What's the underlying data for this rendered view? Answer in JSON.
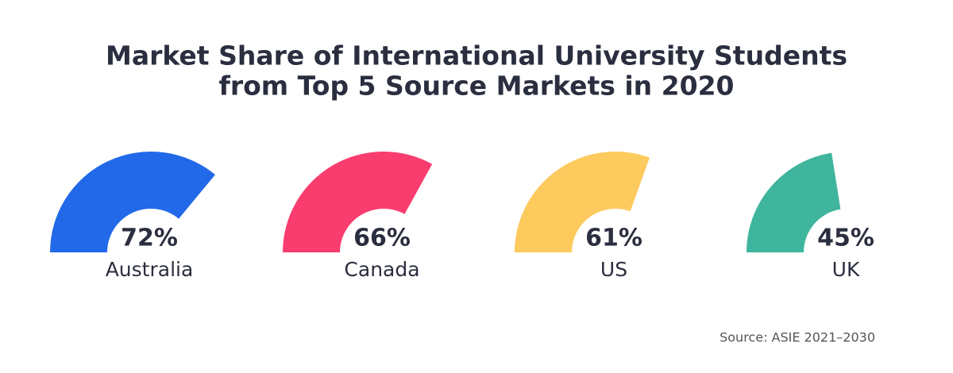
{
  "chart_data": {
    "type": "gauge",
    "title": [
      "Market Share of International University Students",
      "from Top 5 Source Markets in 2020"
    ],
    "categories": [
      "Australia",
      "Canada",
      "US",
      "UK"
    ],
    "values": [
      72,
      66,
      61,
      45
    ],
    "value_labels": [
      "72%",
      "66%",
      "61%",
      "45%"
    ],
    "colors": [
      "#2169e8",
      "#f93d6e",
      "#fdca5d",
      "#3fb59d"
    ],
    "ylim": [
      0,
      100
    ],
    "source": "Source: ASIE 2021–2030"
  }
}
